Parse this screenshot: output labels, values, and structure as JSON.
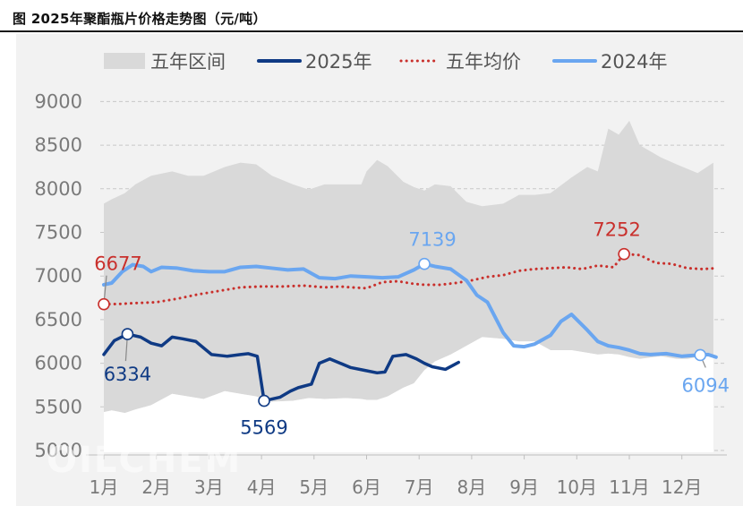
{
  "title": "图   2025年聚酯瓶片价格走势图（元/吨）",
  "watermark": "OILCHEM",
  "chart_data": {
    "type": "line",
    "title": "2025年聚酯瓶片价格走势图（元/吨）",
    "ylim": [
      5000,
      9000
    ],
    "yticks": [
      "9000",
      "8500",
      "8000",
      "7500",
      "7000",
      "6500",
      "6000",
      "5500",
      "5000"
    ],
    "xticks": [
      "1月",
      "2月",
      "3月",
      "4月",
      "5月",
      "6月",
      "7月",
      "8月",
      "9月",
      "10月",
      "11月",
      "12月"
    ],
    "grid": true,
    "legend_position": "top",
    "legend": [
      {
        "label": "五年区间",
        "kind": "area",
        "color": "#d9d9d9"
      },
      {
        "label": "2025年",
        "kind": "line",
        "color": "#0f3a84"
      },
      {
        "label": "五年均价",
        "kind": "dotted",
        "color": "#c9302c"
      },
      {
        "label": "2024年",
        "kind": "line",
        "color": "#6aa6f0"
      }
    ],
    "range_band": {
      "name": "五年区间",
      "x": [
        1.0,
        1.15,
        1.4,
        1.6,
        1.9,
        2.3,
        2.6,
        2.9,
        3.3,
        3.6,
        3.9,
        4.2,
        4.6,
        4.9,
        5.2,
        5.6,
        5.9,
        6.0,
        6.2,
        6.4,
        6.7,
        6.9,
        7.1,
        7.3,
        7.6,
        7.9,
        8.2,
        8.6,
        8.9,
        9.2,
        9.5,
        9.9,
        10.2,
        10.4,
        10.6,
        10.8,
        11.0,
        11.2,
        11.6,
        11.9,
        12.1,
        12.3,
        12.6
      ],
      "high": [
        7830,
        7880,
        7950,
        8050,
        8150,
        8200,
        8150,
        8150,
        8250,
        8300,
        8280,
        8150,
        8050,
        7990,
        8050,
        8050,
        8050,
        8200,
        8330,
        8260,
        8080,
        8020,
        7980,
        8050,
        8030,
        7850,
        7800,
        7830,
        7930,
        7930,
        7950,
        8130,
        8250,
        8200,
        8690,
        8620,
        8780,
        8500,
        8360,
        8280,
        8230,
        8180,
        8300
      ],
      "low": [
        5440,
        5460,
        5430,
        5470,
        5520,
        5650,
        5620,
        5590,
        5680,
        5650,
        5620,
        5560,
        5570,
        5600,
        5590,
        5600,
        5590,
        5580,
        5580,
        5620,
        5720,
        5770,
        5920,
        6020,
        6100,
        6200,
        6300,
        6280,
        6250,
        6250,
        6150,
        6150,
        6120,
        6100,
        6110,
        6100,
        6070,
        6050,
        6080,
        6050,
        6050,
        6070,
        6090
      ]
    },
    "series": [
      {
        "name": "2025年",
        "color": "#0f3a84",
        "x": [
          1.0,
          1.2,
          1.45,
          1.7,
          1.9,
          2.1,
          2.3,
          2.5,
          2.75,
          3.05,
          3.35,
          3.6,
          3.75,
          3.92,
          4.05,
          4.2,
          4.35,
          4.55,
          4.7,
          4.95,
          5.1,
          5.3,
          5.5,
          5.7,
          5.95,
          6.2,
          6.35,
          6.5,
          6.75,
          6.95,
          7.1,
          7.25,
          7.5,
          7.75
        ],
        "values": [
          6100,
          6260,
          6334,
          6300,
          6230,
          6200,
          6300,
          6280,
          6250,
          6100,
          6080,
          6100,
          6110,
          6080,
          5569,
          5590,
          5610,
          5680,
          5720,
          5760,
          6000,
          6050,
          6000,
          5950,
          5920,
          5890,
          5900,
          6080,
          6100,
          6050,
          6000,
          5960,
          5930,
          6010
        ]
      },
      {
        "name": "五年均价",
        "color": "#c9302c",
        "x": [
          1.0,
          1.3,
          1.6,
          2.0,
          2.4,
          2.8,
          3.2,
          3.6,
          4.0,
          4.4,
          4.8,
          5.2,
          5.5,
          5.7,
          6.0,
          6.3,
          6.6,
          6.9,
          7.1,
          7.4,
          7.7,
          8.0,
          8.3,
          8.6,
          8.9,
          9.2,
          9.5,
          9.8,
          10.1,
          10.4,
          10.7,
          10.9,
          11.2,
          11.5,
          11.8,
          12.1,
          12.4,
          12.65
        ],
        "values": [
          6677,
          6680,
          6690,
          6700,
          6740,
          6790,
          6830,
          6870,
          6880,
          6880,
          6890,
          6870,
          6880,
          6870,
          6860,
          6930,
          6940,
          6910,
          6900,
          6900,
          6920,
          6950,
          6990,
          7010,
          7060,
          7080,
          7090,
          7100,
          7080,
          7120,
          7100,
          7252,
          7240,
          7150,
          7140,
          7090,
          7080,
          7090
        ]
      },
      {
        "name": "2024年",
        "color": "#6aa6f0",
        "x": [
          1.0,
          1.15,
          1.35,
          1.55,
          1.75,
          1.9,
          2.1,
          2.4,
          2.7,
          3.0,
          3.3,
          3.6,
          3.9,
          4.2,
          4.5,
          4.8,
          5.1,
          5.4,
          5.7,
          6.0,
          6.3,
          6.6,
          6.9,
          7.1,
          7.3,
          7.6,
          7.9,
          8.1,
          8.3,
          8.6,
          8.8,
          9.0,
          9.2,
          9.5,
          9.7,
          9.9,
          10.05,
          10.2,
          10.4,
          10.6,
          10.8,
          11.0,
          11.2,
          11.4,
          11.7,
          12.0,
          12.2,
          12.35,
          12.5,
          12.65
        ],
        "values": [
          6900,
          6920,
          7050,
          7130,
          7110,
          7050,
          7100,
          7090,
          7060,
          7050,
          7050,
          7100,
          7110,
          7090,
          7070,
          7080,
          6980,
          6970,
          7000,
          6990,
          6980,
          6990,
          7070,
          7139,
          7110,
          7080,
          6950,
          6780,
          6700,
          6350,
          6200,
          6190,
          6220,
          6320,
          6480,
          6560,
          6470,
          6380,
          6250,
          6200,
          6180,
          6150,
          6110,
          6100,
          6110,
          6080,
          6090,
          6094,
          6100,
          6070
        ]
      }
    ],
    "annotations": [
      {
        "series": "五年均价",
        "label": "6677",
        "x": 1.0,
        "y": 6677,
        "color": "#c9302c"
      },
      {
        "series": "2025年",
        "label": "6334",
        "x": 1.45,
        "y": 6334,
        "color": "#0f3a84"
      },
      {
        "series": "2025年",
        "label": "5569",
        "x": 4.05,
        "y": 5569,
        "color": "#0f3a84"
      },
      {
        "series": "2024年",
        "label": "7139",
        "x": 7.1,
        "y": 7139,
        "color": "#6aa6f0"
      },
      {
        "series": "五年均价",
        "label": "7252",
        "x": 10.9,
        "y": 7252,
        "color": "#c9302c"
      },
      {
        "series": "2024年",
        "label": "6094",
        "x": 12.35,
        "y": 6094,
        "color": "#6aa6f0"
      }
    ]
  }
}
